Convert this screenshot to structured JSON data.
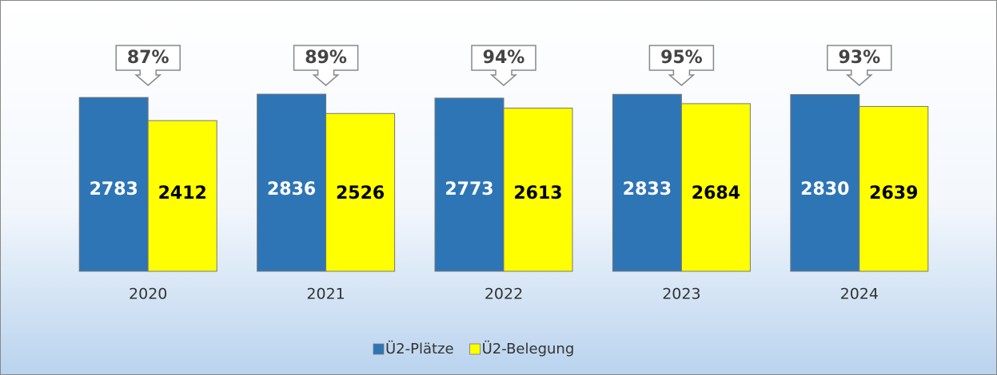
{
  "chart_data": {
    "type": "bar",
    "categories": [
      "2020",
      "2021",
      "2022",
      "2023",
      "2024"
    ],
    "series": [
      {
        "name": "Ü2-Plätze",
        "color": "#2e75b6",
        "values": [
          2783,
          2836,
          2773,
          2833,
          2830
        ]
      },
      {
        "name": "Ü2-Belegung",
        "color": "#ffff00",
        "values": [
          2412,
          2526,
          2613,
          2684,
          2639
        ]
      }
    ],
    "annotations": [
      "87%",
      "89%",
      "94%",
      "95%",
      "93%"
    ],
    "legend": "bottom"
  }
}
